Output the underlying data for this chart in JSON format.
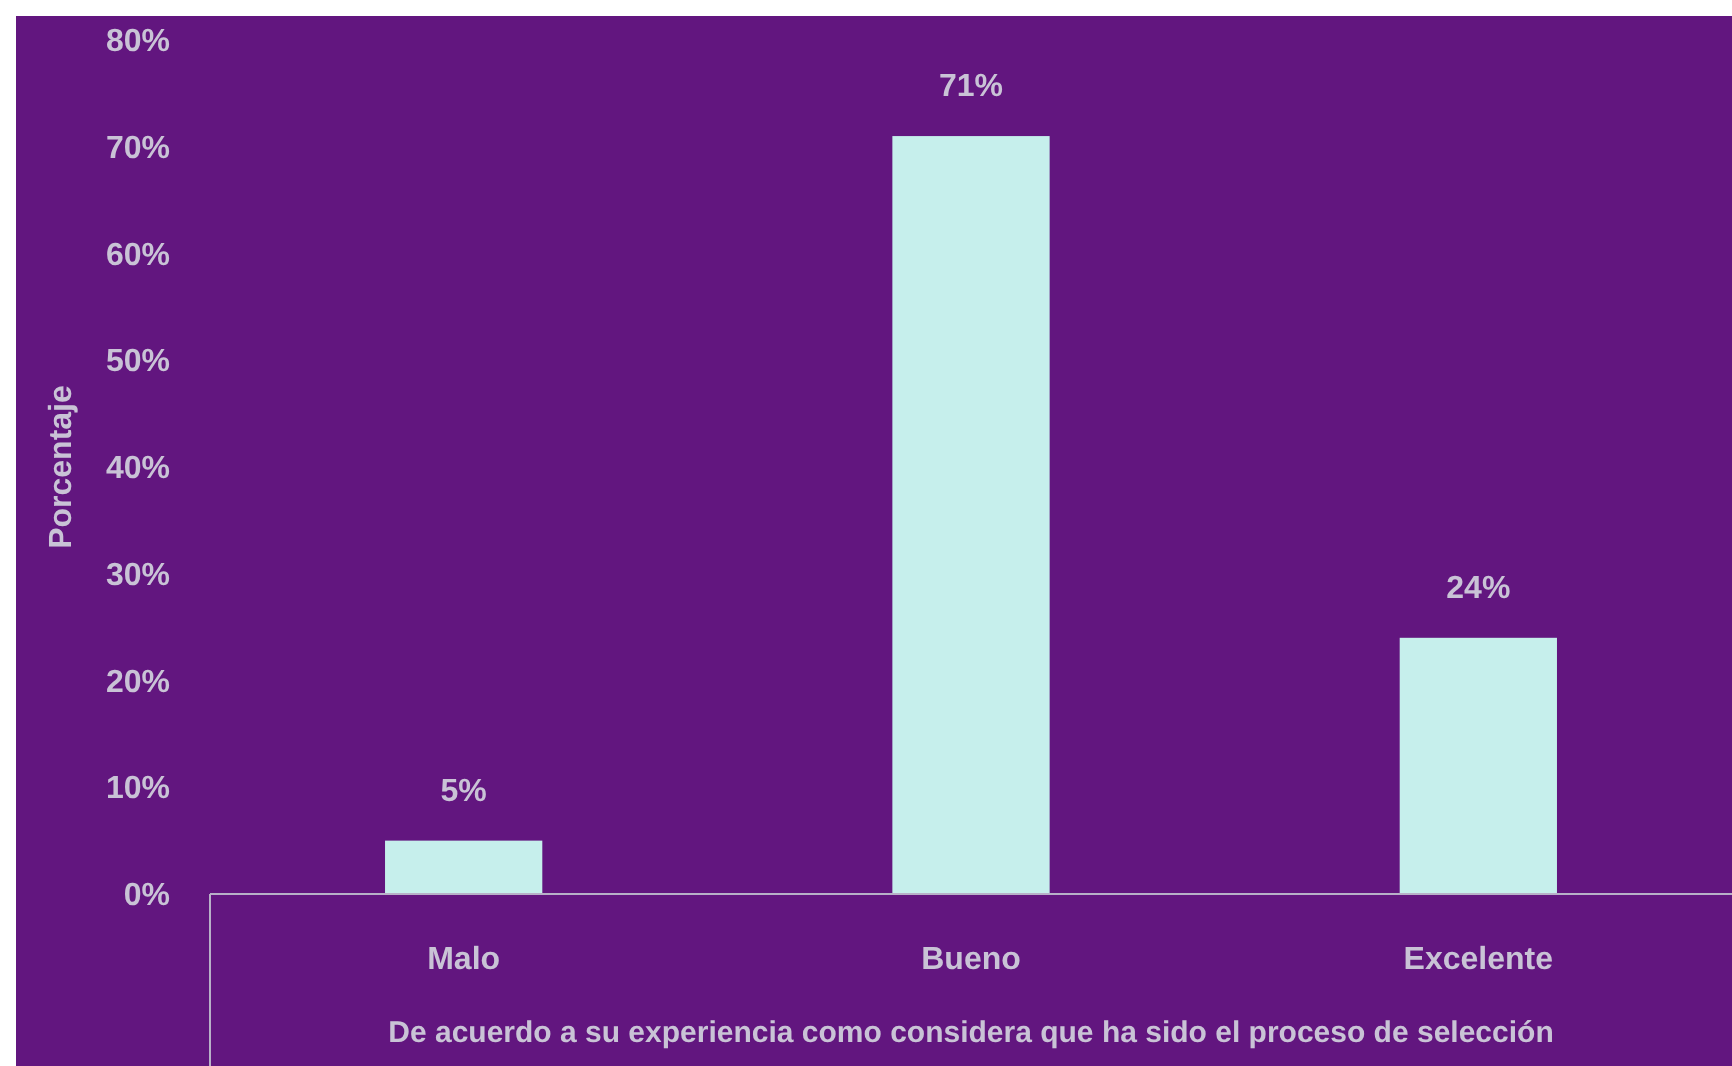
{
  "chart_data": {
    "type": "bar",
    "xlabel": "De acuerdo a su experiencia como considera que ha sido el proceso de selección",
    "ylabel": "Porcentaje",
    "categories": [
      "Malo",
      "Bueno",
      "Excelente"
    ],
    "values": [
      5,
      71,
      24
    ],
    "color": "#c6efec",
    "value_labels": [
      "5%",
      "71%",
      "24%"
    ],
    "ylim": [
      0,
      80
    ],
    "yticks": [
      {
        "value": 0,
        "label": "0%"
      },
      {
        "value": 10,
        "label": "10%"
      },
      {
        "value": 20,
        "label": "20%"
      },
      {
        "value": 30,
        "label": "30%"
      },
      {
        "value": 40,
        "label": "40%"
      },
      {
        "value": 50,
        "label": "50%"
      },
      {
        "value": 60,
        "label": "60%"
      },
      {
        "value": 70,
        "label": "70%"
      },
      {
        "value": 80,
        "label": "80%"
      }
    ],
    "grid": false
  }
}
